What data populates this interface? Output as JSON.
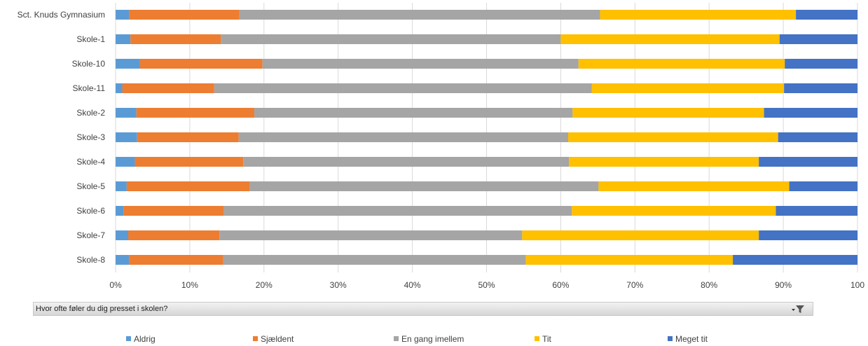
{
  "chart_data": {
    "type": "bar",
    "orientation": "horizontal",
    "stacked": "percent",
    "categories": [
      "Sct. Knuds Gymnasium",
      "Skole-1",
      "Skole-10",
      "Skole-11",
      "Skole-2",
      "Skole-3",
      "Skole-4",
      "Skole-5",
      "Skole-6",
      "Skole-7",
      "Skole-8"
    ],
    "series": [
      {
        "name": "Aldrig",
        "color": "#5b9bd5",
        "values": [
          1.8,
          2.0,
          3.3,
          0.9,
          2.8,
          2.9,
          2.6,
          1.5,
          1.1,
          1.7,
          1.8
        ]
      },
      {
        "name": "Sjældent",
        "color": "#ed7d31",
        "values": [
          14.9,
          12.2,
          16.5,
          12.4,
          15.9,
          13.7,
          14.6,
          16.6,
          13.5,
          12.3,
          12.7
        ]
      },
      {
        "name": "En gang imellem",
        "color": "#a5a5a5",
        "values": [
          48.6,
          45.8,
          42.6,
          50.9,
          42.9,
          44.4,
          43.9,
          47.0,
          46.9,
          40.8,
          40.8
        ]
      },
      {
        "name": "Tit",
        "color": "#ffc000",
        "values": [
          26.4,
          29.5,
          27.8,
          25.9,
          25.8,
          28.3,
          25.6,
          25.7,
          27.5,
          31.9,
          27.9
        ]
      },
      {
        "name": "Meget tit",
        "color": "#4472c4",
        "values": [
          8.3,
          10.5,
          9.8,
          9.9,
          12.6,
          10.7,
          13.3,
          9.2,
          11.0,
          13.3,
          16.8
        ]
      }
    ],
    "xaxis": {
      "ticks": [
        0,
        10,
        20,
        30,
        40,
        50,
        60,
        70,
        80,
        90,
        100
      ],
      "tick_labels": [
        "0%",
        "10%",
        "20%",
        "30%",
        "40%",
        "50%",
        "60%",
        "70%",
        "80%",
        "90%",
        "100"
      ],
      "xlim": [
        0,
        100
      ]
    },
    "grid": "vertical",
    "legend_position": "bottom"
  },
  "filter": {
    "label": "Hvor ofte føler du dig presset i skolen?",
    "icon": "filter-dropdown-icon"
  }
}
